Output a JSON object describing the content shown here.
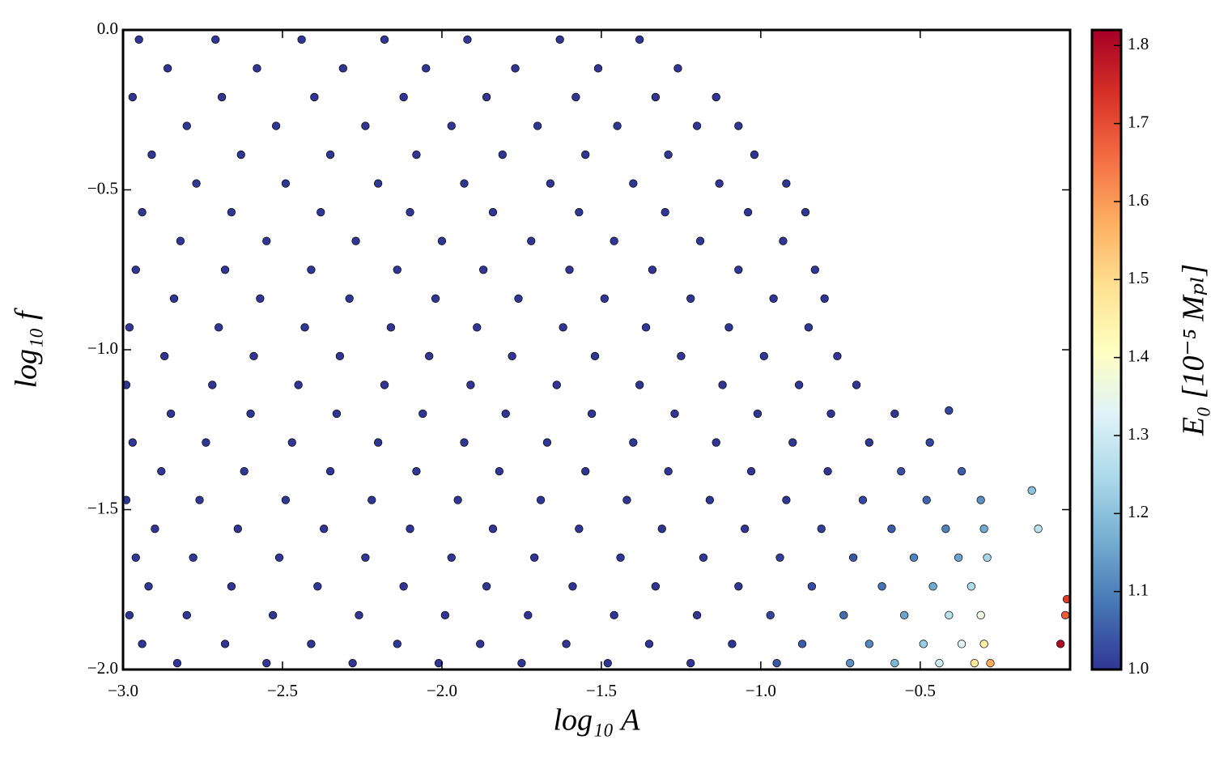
{
  "chart_data": {
    "type": "scatter",
    "xlabel": "log₁₀ A",
    "ylabel": "log₁₀ f",
    "colorbar_label": "E₀ [10⁻⁵ Mₚₗ]",
    "xlim": [
      -3.0,
      -0.03
    ],
    "ylim": [
      -2.0,
      0.0
    ],
    "xticks": [
      {
        "value": -3.0,
        "label": "−3.0"
      },
      {
        "value": -2.5,
        "label": "−2.5"
      },
      {
        "value": -2.0,
        "label": "−2.0"
      },
      {
        "value": -1.5,
        "label": "−1.5"
      },
      {
        "value": -1.0,
        "label": "−1.0"
      },
      {
        "value": -0.5,
        "label": "−0.5"
      }
    ],
    "yticks": [
      {
        "value": 0.0,
        "label": "0.0"
      },
      {
        "value": -0.5,
        "label": "−0.5"
      },
      {
        "value": -1.0,
        "label": "−1.0"
      },
      {
        "value": -1.5,
        "label": "−1.5"
      },
      {
        "value": -2.0,
        "label": "−2.0"
      }
    ],
    "clim": [
      1.0,
      1.82
    ],
    "cticks": [
      {
        "value": 1.0,
        "label": "1.0"
      },
      1.1,
      1.2,
      1.3,
      1.4,
      1.5,
      1.6,
      1.7,
      1.8
    ],
    "colormap": [
      "#313695",
      "#4575b4",
      "#74add1",
      "#abd9e9",
      "#e0f3f8",
      "#ffffbf",
      "#fee090",
      "#fdae61",
      "#f46d43",
      "#d73027",
      "#a50026"
    ],
    "edge_color": "#000000",
    "series": [
      {
        "x": [
          -2.95,
          -2.71,
          -2.44,
          -2.18,
          -1.92,
          -1.63,
          -1.38,
          -2.86,
          -2.58,
          -2.31,
          -2.05,
          -1.77,
          -1.51,
          -1.26,
          -2.97,
          -2.69,
          -2.4,
          -2.12,
          -1.86,
          -1.58,
          -1.33,
          -1.14,
          -2.8,
          -2.52,
          -2.24,
          -1.97,
          -1.7,
          -1.45,
          -1.2,
          -1.07,
          -2.91,
          -2.63,
          -2.35,
          -2.08,
          -1.81,
          -1.55,
          -1.29,
          -1.02,
          -2.77,
          -2.49,
          -2.2,
          -1.93,
          -1.66,
          -1.4,
          -1.13,
          -0.92,
          -2.94,
          -2.66,
          -2.38,
          -2.1,
          -1.84,
          -1.57,
          -1.3,
          -1.04,
          -0.86,
          -2.82,
          -2.55,
          -2.27,
          -2.0,
          -1.72,
          -1.46,
          -1.19,
          -0.93,
          -2.96,
          -2.68,
          -2.41,
          -2.14,
          -1.87,
          -1.6,
          -1.34,
          -1.07,
          -0.83,
          -2.84,
          -2.57,
          -2.29,
          -2.02,
          -1.76,
          -1.49,
          -1.22,
          -0.96,
          -0.8,
          -2.98,
          -2.7,
          -2.43,
          -2.16,
          -1.89,
          -1.62,
          -1.36,
          -1.1,
          -0.85,
          -2.87,
          -2.59,
          -2.32,
          -2.04,
          -1.78,
          -1.52,
          -1.25,
          -0.99,
          -0.76,
          -2.99,
          -2.72,
          -2.45,
          -2.18,
          -1.91,
          -1.64,
          -1.38,
          -1.12,
          -0.88,
          -0.7,
          -2.85,
          -2.6,
          -2.33,
          -2.06,
          -1.8,
          -1.53,
          -1.27,
          -1.01,
          -0.78,
          -0.58,
          -2.97,
          -2.74,
          -2.47,
          -2.2,
          -1.93,
          -1.67,
          -1.4,
          -1.14,
          -0.9,
          -0.66,
          -0.47,
          -2.88,
          -2.62,
          -2.35,
          -2.08,
          -1.82,
          -1.55,
          -1.29,
          -1.03,
          -0.79,
          -0.56,
          -0.37,
          -2.99,
          -2.76,
          -2.49,
          -2.22,
          -1.95,
          -1.69,
          -1.42,
          -1.16,
          -0.92,
          -0.68,
          -0.48,
          -0.31,
          -2.9,
          -2.64,
          -2.37,
          -2.1,
          -1.84,
          -1.57,
          -1.31,
          -1.05,
          -0.81,
          -0.59,
          -0.42,
          -0.3,
          -2.96,
          -2.78,
          -2.51,
          -2.24,
          -1.97,
          -1.71,
          -1.44,
          -1.18,
          -0.94,
          -0.71,
          -0.52,
          -0.38,
          -0.29,
          -2.92,
          -2.66,
          -2.39,
          -2.12,
          -1.86,
          -1.59,
          -1.33,
          -1.07,
          -0.84,
          -0.62,
          -0.46,
          -0.34,
          -2.98,
          -2.8,
          -2.53,
          -2.26,
          -1.99,
          -1.73,
          -1.46,
          -1.2,
          -0.97,
          -0.74,
          -0.55,
          -0.41,
          -0.31,
          -2.94,
          -2.68,
          -2.41,
          -2.14,
          -1.88,
          -1.61,
          -1.35,
          -1.09,
          -0.87,
          -0.66,
          -0.49,
          -0.37,
          -0.3,
          -2.83,
          -2.55,
          -2.28,
          -2.01,
          -1.75,
          -1.48,
          -1.22,
          -0.95,
          -0.72,
          -0.58,
          -0.44,
          -0.33,
          -0.28,
          -0.41,
          -0.15,
          -0.13,
          -0.04,
          -0.045,
          -0.06
        ],
        "values": [
          -0.03,
          -0.03,
          -0.03,
          -0.03,
          -0.03,
          -0.03,
          -0.03,
          -0.12,
          -0.12,
          -0.12,
          -0.12,
          -0.12,
          -0.12,
          -0.12,
          -0.21,
          -0.21,
          -0.21,
          -0.21,
          -0.21,
          -0.21,
          -0.21,
          -0.21,
          -0.3,
          -0.3,
          -0.3,
          -0.3,
          -0.3,
          -0.3,
          -0.3,
          -0.3,
          -0.39,
          -0.39,
          -0.39,
          -0.39,
          -0.39,
          -0.39,
          -0.39,
          -0.39,
          -0.48,
          -0.48,
          -0.48,
          -0.48,
          -0.48,
          -0.48,
          -0.48,
          -0.48,
          -0.57,
          -0.57,
          -0.57,
          -0.57,
          -0.57,
          -0.57,
          -0.57,
          -0.57,
          -0.57,
          -0.66,
          -0.66,
          -0.66,
          -0.66,
          -0.66,
          -0.66,
          -0.66,
          -0.66,
          -0.75,
          -0.75,
          -0.75,
          -0.75,
          -0.75,
          -0.75,
          -0.75,
          -0.75,
          -0.75,
          -0.84,
          -0.84,
          -0.84,
          -0.84,
          -0.84,
          -0.84,
          -0.84,
          -0.84,
          -0.84,
          -0.93,
          -0.93,
          -0.93,
          -0.93,
          -0.93,
          -0.93,
          -0.93,
          -0.93,
          -0.93,
          -1.02,
          -1.02,
          -1.02,
          -1.02,
          -1.02,
          -1.02,
          -1.02,
          -1.02,
          -1.02,
          -1.11,
          -1.11,
          -1.11,
          -1.11,
          -1.11,
          -1.11,
          -1.11,
          -1.11,
          -1.11,
          -1.11,
          -1.2,
          -1.2,
          -1.2,
          -1.2,
          -1.2,
          -1.2,
          -1.2,
          -1.2,
          -1.2,
          -1.2,
          -1.29,
          -1.29,
          -1.29,
          -1.29,
          -1.29,
          -1.29,
          -1.29,
          -1.29,
          -1.29,
          -1.29,
          -1.29,
          -1.38,
          -1.38,
          -1.38,
          -1.38,
          -1.38,
          -1.38,
          -1.38,
          -1.38,
          -1.38,
          -1.38,
          -1.38,
          -1.47,
          -1.47,
          -1.47,
          -1.47,
          -1.47,
          -1.47,
          -1.47,
          -1.47,
          -1.47,
          -1.47,
          -1.47,
          -1.47,
          -1.56,
          -1.56,
          -1.56,
          -1.56,
          -1.56,
          -1.56,
          -1.56,
          -1.56,
          -1.56,
          -1.56,
          -1.56,
          -1.56,
          -1.65,
          -1.65,
          -1.65,
          -1.65,
          -1.65,
          -1.65,
          -1.65,
          -1.65,
          -1.65,
          -1.65,
          -1.65,
          -1.65,
          -1.65,
          -1.74,
          -1.74,
          -1.74,
          -1.74,
          -1.74,
          -1.74,
          -1.74,
          -1.74,
          -1.74,
          -1.74,
          -1.74,
          -1.74,
          -1.83,
          -1.83,
          -1.83,
          -1.83,
          -1.83,
          -1.83,
          -1.83,
          -1.83,
          -1.83,
          -1.83,
          -1.83,
          -1.83,
          -1.83,
          -1.92,
          -1.92,
          -1.92,
          -1.92,
          -1.92,
          -1.92,
          -1.92,
          -1.92,
          -1.92,
          -1.92,
          -1.92,
          -1.92,
          -1.92,
          -1.98,
          -1.98,
          -1.98,
          -1.98,
          -1.98,
          -1.98,
          -1.98,
          -1.98,
          -1.98,
          -1.98,
          -1.98,
          -1.98,
          -1.98,
          -1.19,
          -1.44,
          -1.56,
          -1.78,
          -1.83,
          -1.92
        ],
        "color_values": [
          1.0,
          1.0,
          1.0,
          1.0,
          1.0,
          1.0,
          1.0,
          1.0,
          1.0,
          1.0,
          1.0,
          1.0,
          1.0,
          1.0,
          1.0,
          1.0,
          1.0,
          1.0,
          1.0,
          1.0,
          1.0,
          1.0,
          1.0,
          1.0,
          1.0,
          1.0,
          1.0,
          1.0,
          1.0,
          1.0,
          1.0,
          1.0,
          1.0,
          1.0,
          1.0,
          1.0,
          1.0,
          1.0,
          1.0,
          1.0,
          1.0,
          1.0,
          1.0,
          1.0,
          1.0,
          1.0,
          1.0,
          1.0,
          1.0,
          1.0,
          1.0,
          1.0,
          1.0,
          1.0,
          1.0,
          1.0,
          1.0,
          1.0,
          1.0,
          1.0,
          1.0,
          1.0,
          1.0,
          1.0,
          1.0,
          1.0,
          1.0,
          1.0,
          1.0,
          1.0,
          1.0,
          1.0,
          1.0,
          1.0,
          1.0,
          1.0,
          1.0,
          1.0,
          1.0,
          1.0,
          1.0,
          1.0,
          1.0,
          1.0,
          1.0,
          1.0,
          1.0,
          1.0,
          1.0,
          1.0,
          1.0,
          1.0,
          1.0,
          1.0,
          1.0,
          1.0,
          1.0,
          1.0,
          1.0,
          1.0,
          1.0,
          1.0,
          1.0,
          1.0,
          1.0,
          1.0,
          1.0,
          1.0,
          1.0,
          1.0,
          1.0,
          1.0,
          1.0,
          1.0,
          1.0,
          1.0,
          1.0,
          1.0,
          1.0,
          1.0,
          1.0,
          1.0,
          1.0,
          1.0,
          1.0,
          1.0,
          1.0,
          1.0,
          1.0,
          1.02,
          1.0,
          1.0,
          1.0,
          1.0,
          1.0,
          1.0,
          1.0,
          1.0,
          1.0,
          1.03,
          1.05,
          1.0,
          1.0,
          1.0,
          1.0,
          1.0,
          1.0,
          1.0,
          1.0,
          1.0,
          1.02,
          1.06,
          1.12,
          1.0,
          1.0,
          1.0,
          1.0,
          1.0,
          1.0,
          1.0,
          1.0,
          1.01,
          1.05,
          1.1,
          1.16,
          1.0,
          1.0,
          1.0,
          1.0,
          1.0,
          1.0,
          1.0,
          1.0,
          1.01,
          1.04,
          1.1,
          1.15,
          1.24,
          1.0,
          1.0,
          1.0,
          1.0,
          1.0,
          1.0,
          1.0,
          1.0,
          1.03,
          1.08,
          1.16,
          1.25,
          1.0,
          1.0,
          1.0,
          1.0,
          1.0,
          1.0,
          1.0,
          1.0,
          1.02,
          1.07,
          1.15,
          1.27,
          1.36,
          1.0,
          1.0,
          1.0,
          1.0,
          1.0,
          1.0,
          1.0,
          1.0,
          1.05,
          1.11,
          1.22,
          1.33,
          1.45,
          1.0,
          1.0,
          1.0,
          1.0,
          1.0,
          1.0,
          1.0,
          1.04,
          1.12,
          1.18,
          1.3,
          1.48,
          1.58,
          1.02,
          1.2,
          1.27,
          1.72,
          1.68,
          1.8
        ]
      }
    ]
  }
}
